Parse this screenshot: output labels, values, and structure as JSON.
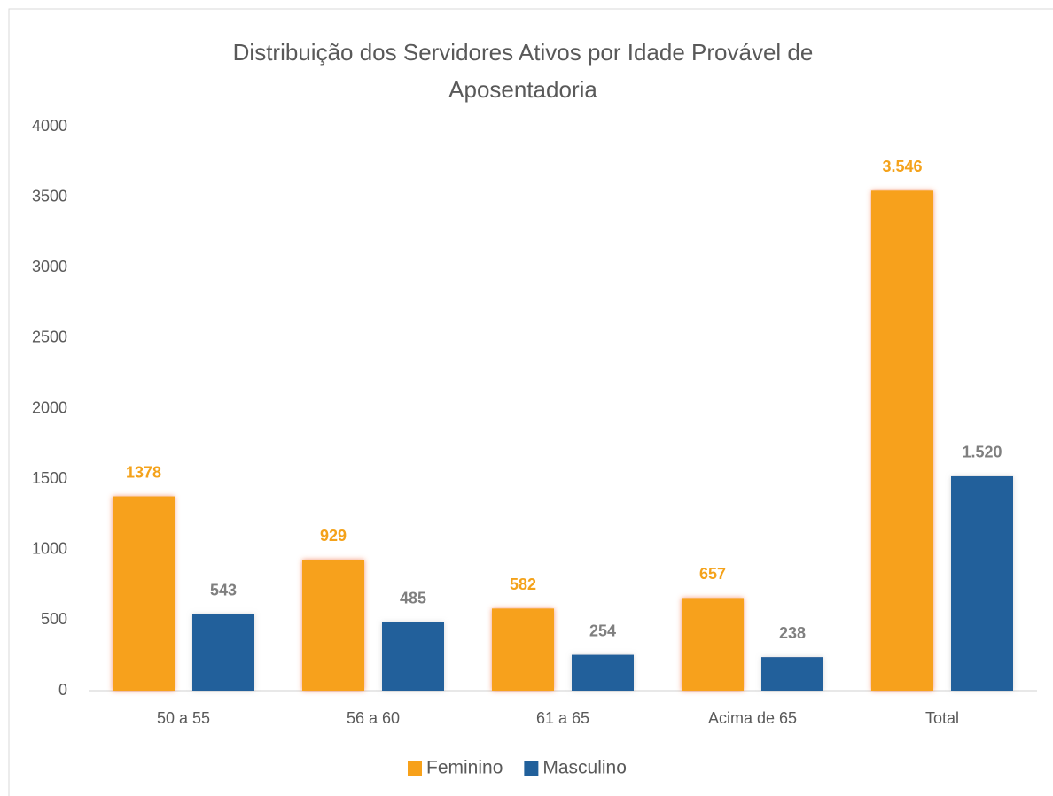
{
  "chart_data": {
    "type": "bar",
    "title": "Distribuição dos Servidores Ativos por Idade Provável de Aposentadoria",
    "categories": [
      "50 a 55",
      "56 a 60",
      "61 a 65",
      "Acima de 65",
      "Total"
    ],
    "series": [
      {
        "name": "Feminino",
        "color": "#f7a11a",
        "label_color": "#f4a21a",
        "values": [
          1378,
          929,
          582,
          657,
          3546
        ],
        "value_labels": [
          "1378",
          "929",
          "582",
          "657",
          "3.546"
        ]
      },
      {
        "name": "Masculino",
        "color": "#21609b",
        "label_color": "#7f7f7f",
        "values": [
          543,
          485,
          254,
          238,
          1520
        ],
        "value_labels": [
          "543",
          "485",
          "254",
          "238",
          "1.520"
        ]
      }
    ],
    "ylim": [
      0,
      4000
    ],
    "yticks": [
      0,
      500,
      1000,
      1500,
      2000,
      2500,
      3000,
      3500,
      4000
    ],
    "grid": false,
    "legend": "bottom"
  }
}
